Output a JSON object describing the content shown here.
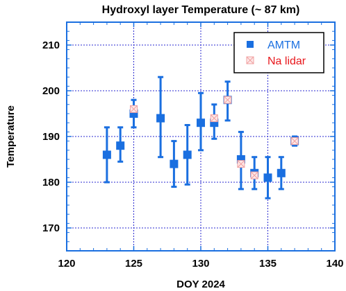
{
  "chart_data": {
    "type": "scatter",
    "title": "Hydroxyl layer Temperature (~ 87 km)",
    "xlabel": "DOY 2024",
    "ylabel": "Temperature",
    "xlim": [
      120,
      140
    ],
    "ylim": [
      165,
      215
    ],
    "x_ticks": [
      "120",
      "125",
      "130",
      "135",
      "140"
    ],
    "y_ticks": [
      "170",
      "180",
      "190",
      "200",
      "210"
    ],
    "x_tick_values": [
      120,
      125,
      130,
      135,
      140
    ],
    "y_tick_values": [
      170,
      180,
      190,
      200,
      210
    ],
    "grid": true,
    "legend_position": "top-right",
    "legend": [
      {
        "name": "AMTM",
        "color": "#1a6fe0"
      },
      {
        "name": "Na lidar",
        "color": "#e8161b"
      }
    ],
    "series": [
      {
        "name": "AMTM",
        "color": "#1a6fe0",
        "marker": "filled-square",
        "points": [
          {
            "x": 123,
            "y": 186,
            "err_low": 180,
            "err_high": 192
          },
          {
            "x": 124,
            "y": 188,
            "err_low": 184.5,
            "err_high": 192
          },
          {
            "x": 125,
            "y": 195,
            "err_low": 192,
            "err_high": 198
          },
          {
            "x": 127,
            "y": 194,
            "err_low": 185.5,
            "err_high": 203
          },
          {
            "x": 128,
            "y": 184,
            "err_low": 179,
            "err_high": 189
          },
          {
            "x": 129,
            "y": 186,
            "err_low": 179.5,
            "err_high": 192.5
          },
          {
            "x": 130,
            "y": 193,
            "err_low": 187,
            "err_high": 199.5
          },
          {
            "x": 131,
            "y": 193,
            "err_low": 189.5,
            "err_high": 197
          },
          {
            "x": 132,
            "y": 198,
            "err_low": 193.5,
            "err_high": 202
          },
          {
            "x": 133,
            "y": 185,
            "err_low": 178.5,
            "err_high": 191
          },
          {
            "x": 134,
            "y": 182,
            "err_low": 178.5,
            "err_high": 185.5
          },
          {
            "x": 135,
            "y": 181,
            "err_low": 176.5,
            "err_high": 185.5
          },
          {
            "x": 136,
            "y": 182,
            "err_low": 178.5,
            "err_high": 185.5
          },
          {
            "x": 137,
            "y": 189,
            "err_low": 188,
            "err_high": 190
          }
        ]
      },
      {
        "name": "Na lidar",
        "color": "#e8161b",
        "marker": "open-square-x",
        "points": [
          {
            "x": 125,
            "y": 196
          },
          {
            "x": 131,
            "y": 194
          },
          {
            "x": 132,
            "y": 198
          },
          {
            "x": 133,
            "y": 184
          },
          {
            "x": 134,
            "y": 181.5
          },
          {
            "x": 137,
            "y": 189
          }
        ]
      }
    ]
  }
}
